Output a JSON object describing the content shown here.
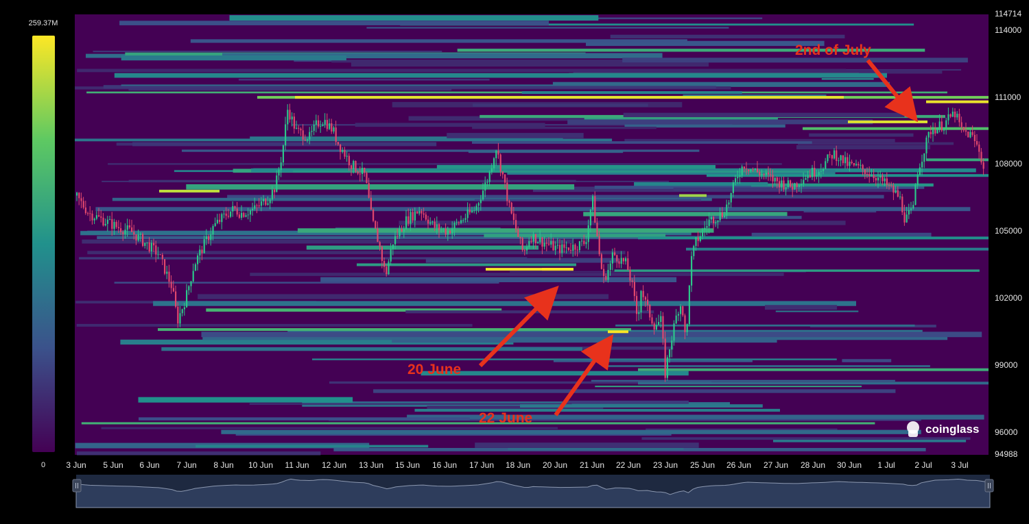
{
  "chart_data": {
    "type": "heatmap",
    "subtype": "liquidation-heatmap-with-candlesticks",
    "x_tick_labels": [
      "3 Jun",
      "5 Jun",
      "6 Jun",
      "7 Jun",
      "8 Jun",
      "10 Jun",
      "11 Jun",
      "12 Jun",
      "13 Jun",
      "15 Jun",
      "16 Jun",
      "17 Jun",
      "18 Jun",
      "20 Jun",
      "21 Jun",
      "22 Jun",
      "23 Jun",
      "25 Jun",
      "26 Jun",
      "27 Jun",
      "28 Jun",
      "30 Jun",
      "1 Jul",
      "2 Jul",
      "3 Jul"
    ],
    "y_tick_labels": [
      "114714",
      "114000",
      "111000",
      "108000",
      "105000",
      "102000",
      "99000",
      "96000",
      "94988"
    ],
    "ylim": [
      94988,
      114714
    ],
    "color_scale": {
      "min_label": "0",
      "max_label": "259.37M",
      "colors": [
        "#440154",
        "#3b528b",
        "#21918c",
        "#5ec962",
        "#fde725"
      ]
    },
    "price_path": [
      [
        0,
        106600
      ],
      [
        1,
        105800
      ],
      [
        2,
        105500
      ],
      [
        3,
        105200
      ],
      [
        4,
        105000
      ],
      [
        5,
        104500
      ],
      [
        6,
        104000
      ],
      [
        7,
        102500
      ],
      [
        7.4,
        101000
      ],
      [
        8,
        102000
      ],
      [
        8.6,
        103500
      ],
      [
        9,
        104000
      ],
      [
        10,
        105200
      ],
      [
        11,
        105800
      ],
      [
        11.5,
        106000
      ],
      [
        12,
        105800
      ],
      [
        13,
        106000
      ],
      [
        14,
        106500
      ],
      [
        14.5,
        107000
      ],
      [
        15,
        108500
      ],
      [
        15.4,
        110500
      ],
      [
        16,
        109500
      ],
      [
        17,
        109200
      ],
      [
        17.5,
        109800
      ],
      [
        18,
        110000
      ],
      [
        18.7,
        109500
      ],
      [
        19,
        109000
      ],
      [
        20,
        108000
      ],
      [
        21,
        107500
      ],
      [
        21.5,
        105500
      ],
      [
        22,
        104500
      ],
      [
        22.5,
        103000
      ],
      [
        23,
        104500
      ],
      [
        24,
        105500
      ],
      [
        25,
        106000
      ],
      [
        26,
        105200
      ],
      [
        27,
        105000
      ],
      [
        28,
        105500
      ],
      [
        29,
        106000
      ],
      [
        30,
        107500
      ],
      [
        30.5,
        108800
      ],
      [
        31,
        107500
      ],
      [
        31.5,
        106000
      ],
      [
        32,
        105000
      ],
      [
        32.5,
        104000
      ],
      [
        33,
        104800
      ],
      [
        34,
        104500
      ],
      [
        35,
        104200
      ],
      [
        36,
        104300
      ],
      [
        37,
        104500
      ],
      [
        37.5,
        106500
      ],
      [
        38,
        104000
      ],
      [
        38.3,
        102800
      ],
      [
        38.8,
        103500
      ],
      [
        39,
        104000
      ],
      [
        40,
        103500
      ],
      [
        40.4,
        102500
      ],
      [
        40.8,
        101000
      ],
      [
        41,
        102500
      ],
      [
        41.5,
        101500
      ],
      [
        42,
        100800
      ],
      [
        42.5,
        101000
      ],
      [
        42.8,
        98500
      ],
      [
        43,
        99500
      ],
      [
        43.7,
        101500
      ],
      [
        44,
        101800
      ],
      [
        44.3,
        99800
      ],
      [
        44.6,
        103500
      ],
      [
        45,
        104500
      ],
      [
        46,
        105500
      ],
      [
        47,
        105800
      ],
      [
        47.5,
        106500
      ],
      [
        48,
        107500
      ],
      [
        48.5,
        108000
      ],
      [
        49,
        107800
      ],
      [
        50,
        107500
      ],
      [
        51,
        107200
      ],
      [
        52,
        107000
      ],
      [
        53,
        107500
      ],
      [
        54,
        107800
      ],
      [
        55,
        108500
      ],
      [
        56,
        108000
      ],
      [
        57,
        107800
      ],
      [
        58,
        107500
      ],
      [
        59,
        107000
      ],
      [
        59.8,
        106500
      ],
      [
        60.2,
        105500
      ],
      [
        60.8,
        106000
      ],
      [
        61,
        107500
      ],
      [
        61.5,
        108500
      ],
      [
        62,
        109500
      ],
      [
        63,
        109800
      ],
      [
        63.8,
        110300
      ],
      [
        64.3,
        109500
      ],
      [
        65,
        109300
      ],
      [
        65.6,
        108600
      ],
      [
        66,
        107500
      ]
    ],
    "annotations": [
      {
        "text": "2nd of July"
      },
      {
        "text": "20 June"
      },
      {
        "text": "22 June"
      }
    ],
    "watermark": "coinglass",
    "grid": false
  }
}
